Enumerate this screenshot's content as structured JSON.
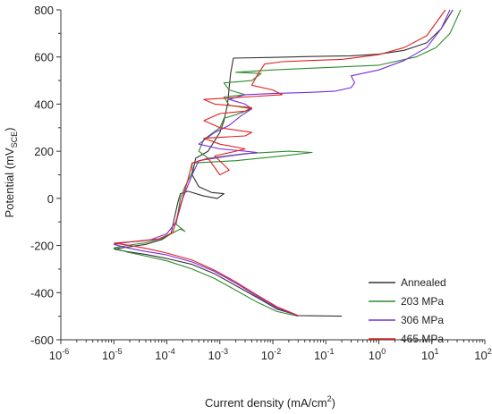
{
  "chart_data": {
    "type": "line",
    "title": "",
    "xlabel": {
      "text": "Current density (mA/cm",
      "sup": "2",
      "end": ")"
    },
    "ylabel": {
      "text": "Potential (mV",
      "sub": "SCE",
      "end": ")"
    },
    "x_scale": "log",
    "xlim": [
      1e-06,
      100
    ],
    "ylim": [
      -600,
      800
    ],
    "x_ticks": [
      {
        "value": 1e-06,
        "base": "10",
        "exp": "-6"
      },
      {
        "value": 1e-05,
        "base": "10",
        "exp": "-5"
      },
      {
        "value": 0.0001,
        "base": "10",
        "exp": "-4"
      },
      {
        "value": 0.001,
        "base": "10",
        "exp": "-3"
      },
      {
        "value": 0.01,
        "base": "10",
        "exp": "-2"
      },
      {
        "value": 0.1,
        "base": "10",
        "exp": "-1"
      },
      {
        "value": 1,
        "base": "10",
        "exp": "0"
      },
      {
        "value": 10,
        "base": "10",
        "exp": "1"
      },
      {
        "value": 100,
        "base": "10",
        "exp": "2"
      }
    ],
    "y_ticks": [
      -600,
      -400,
      -200,
      0,
      200,
      400,
      600,
      800
    ],
    "grid": false,
    "legend_position": "bottom-right",
    "series": [
      {
        "name": "Annealed",
        "color": "#333333",
        "cathodic": [
          [
            0.2,
            -500
          ],
          [
            0.03,
            -497
          ],
          [
            0.012,
            -470
          ],
          [
            0.005,
            -420
          ],
          [
            0.002,
            -370
          ],
          [
            0.0008,
            -320
          ],
          [
            0.0003,
            -280
          ],
          [
            0.0001,
            -255
          ],
          [
            4e-05,
            -238
          ],
          [
            1.8e-05,
            -226
          ],
          [
            1e-05,
            -215
          ]
        ],
        "anodic": [
          [
            1e-05,
            -215
          ],
          [
            2e-05,
            -205
          ],
          [
            4e-05,
            -195
          ],
          [
            8e-05,
            -175
          ],
          [
            0.00012,
            -150
          ],
          [
            0.00014,
            -80
          ],
          [
            0.00016,
            -20
          ],
          [
            0.00018,
            20
          ],
          [
            0.00025,
            30
          ],
          [
            0.0005,
            10
          ],
          [
            0.0009,
            0
          ],
          [
            0.0012,
            20
          ],
          [
            0.0007,
            25
          ],
          [
            0.0004,
            50
          ],
          [
            0.0003,
            100
          ],
          [
            0.00035,
            170
          ],
          [
            0.0006,
            200
          ],
          [
            0.001,
            280
          ],
          [
            0.0012,
            330
          ],
          [
            0.0014,
            400
          ],
          [
            0.0015,
            470
          ],
          [
            0.0016,
            530
          ],
          [
            0.0018,
            595
          ],
          [
            0.01,
            598
          ],
          [
            0.05,
            602
          ],
          [
            0.3,
            605
          ],
          [
            1,
            612
          ],
          [
            3,
            628
          ],
          [
            8,
            660
          ],
          [
            15,
            720
          ],
          [
            25,
            800
          ]
        ]
      },
      {
        "name": "203 MPa",
        "color": "#2e8b2e",
        "cathodic": [
          [
            0.03,
            -500
          ],
          [
            0.012,
            -480
          ],
          [
            0.005,
            -440
          ],
          [
            0.002,
            -390
          ],
          [
            0.0008,
            -340
          ],
          [
            0.0003,
            -300
          ],
          [
            0.0001,
            -265
          ],
          [
            4e-05,
            -245
          ],
          [
            1.8e-05,
            -228
          ],
          [
            1e-05,
            -210
          ]
        ],
        "anodic": [
          [
            1e-05,
            -210
          ],
          [
            2e-05,
            -198
          ],
          [
            4e-05,
            -188
          ],
          [
            8e-05,
            -170
          ],
          [
            0.00018,
            -130
          ],
          [
            0.00022,
            -140
          ],
          [
            0.00015,
            -110
          ],
          [
            0.00018,
            0
          ],
          [
            0.00022,
            50
          ],
          [
            0.0003,
            110
          ],
          [
            0.0003,
            150
          ],
          [
            0.002,
            160
          ],
          [
            0.015,
            180
          ],
          [
            0.055,
            195
          ],
          [
            0.02,
            200
          ],
          [
            0.003,
            190
          ],
          [
            0.0006,
            170
          ],
          [
            0.0004,
            200
          ],
          [
            0.0005,
            250
          ],
          [
            0.001,
            300
          ],
          [
            0.0012,
            340
          ],
          [
            0.002,
            355
          ],
          [
            0.004,
            380
          ],
          [
            0.0015,
            395
          ],
          [
            0.0012,
            430
          ],
          [
            0.003,
            440
          ],
          [
            0.0015,
            460
          ],
          [
            0.0012,
            490
          ],
          [
            0.004,
            500
          ],
          [
            0.006,
            530
          ],
          [
            0.002,
            535
          ],
          [
            0.01,
            545
          ],
          [
            0.1,
            555
          ],
          [
            1,
            565
          ],
          [
            5,
            600
          ],
          [
            12,
            640
          ],
          [
            22,
            700
          ],
          [
            35,
            800
          ]
        ]
      },
      {
        "name": "306 MPa",
        "color": "#7a2be0",
        "cathodic": [
          [
            0.03,
            -498
          ],
          [
            0.012,
            -465
          ],
          [
            0.005,
            -415
          ],
          [
            0.002,
            -360
          ],
          [
            0.0008,
            -310
          ],
          [
            0.0003,
            -270
          ],
          [
            0.0001,
            -240
          ],
          [
            4e-05,
            -225
          ],
          [
            1.8e-05,
            -210
          ],
          [
            1e-05,
            -195
          ]
        ],
        "anodic": [
          [
            1e-05,
            -195
          ],
          [
            2e-05,
            -185
          ],
          [
            5e-05,
            -175
          ],
          [
            0.0001,
            -150
          ],
          [
            0.00015,
            -100
          ],
          [
            0.0002,
            0
          ],
          [
            0.0003,
            100
          ],
          [
            0.0004,
            160
          ],
          [
            0.0015,
            180
          ],
          [
            0.005,
            195
          ],
          [
            0.003,
            200
          ],
          [
            0.001,
            210
          ],
          [
            0.0004,
            230
          ],
          [
            0.0008,
            280
          ],
          [
            0.0015,
            310
          ],
          [
            0.0025,
            350
          ],
          [
            0.004,
            380
          ],
          [
            0.003,
            400
          ],
          [
            0.0015,
            420
          ],
          [
            0.003,
            440
          ],
          [
            0.01,
            445
          ],
          [
            0.05,
            450
          ],
          [
            0.15,
            455
          ],
          [
            0.3,
            470
          ],
          [
            0.35,
            490
          ],
          [
            0.3,
            520
          ],
          [
            1,
            545
          ],
          [
            3,
            585
          ],
          [
            8,
            640
          ],
          [
            15,
            720
          ],
          [
            22,
            800
          ]
        ]
      },
      {
        "name": "465 MPa",
        "color": "#e02020",
        "cathodic": [
          [
            0.03,
            -497
          ],
          [
            0.012,
            -460
          ],
          [
            0.005,
            -410
          ],
          [
            0.002,
            -355
          ],
          [
            0.0008,
            -305
          ],
          [
            0.0003,
            -262
          ],
          [
            0.0001,
            -232
          ],
          [
            4e-05,
            -212
          ],
          [
            1.8e-05,
            -198
          ],
          [
            1e-05,
            -190
          ]
        ],
        "anodic": [
          [
            1e-05,
            -190
          ],
          [
            3e-05,
            -182
          ],
          [
            7e-05,
            -172
          ],
          [
            0.00013,
            -145
          ],
          [
            0.00018,
            -30
          ],
          [
            0.00025,
            80
          ],
          [
            0.0003,
            150
          ],
          [
            0.0006,
            170
          ],
          [
            0.001,
            100
          ],
          [
            0.0015,
            120
          ],
          [
            0.0008,
            180
          ],
          [
            0.002,
            200
          ],
          [
            0.003,
            210
          ],
          [
            0.001,
            230
          ],
          [
            0.0005,
            255
          ],
          [
            0.003,
            265
          ],
          [
            0.004,
            280
          ],
          [
            0.001,
            300
          ],
          [
            0.0005,
            330
          ],
          [
            0.001,
            360
          ],
          [
            0.003,
            370
          ],
          [
            0.004,
            385
          ],
          [
            0.0008,
            400
          ],
          [
            0.0005,
            420
          ],
          [
            0.003,
            430
          ],
          [
            0.015,
            440
          ],
          [
            0.01,
            460
          ],
          [
            0.004,
            480
          ],
          [
            0.005,
            520
          ],
          [
            0.007,
            570
          ],
          [
            0.015,
            580
          ],
          [
            0.05,
            585
          ],
          [
            0.2,
            590
          ],
          [
            0.4,
            598
          ],
          [
            1,
            610
          ],
          [
            3,
            640
          ],
          [
            8,
            690
          ],
          [
            18,
            800
          ]
        ]
      }
    ]
  }
}
